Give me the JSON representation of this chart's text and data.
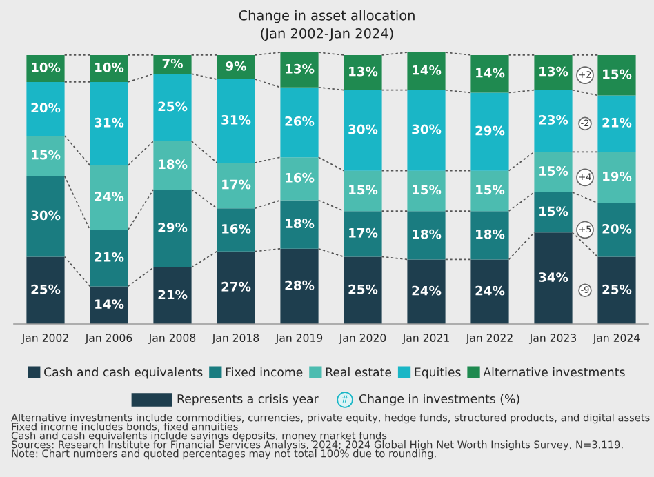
{
  "chart_data": {
    "type": "bar",
    "stacked": true,
    "title": "Change in asset allocation",
    "subtitle": "(Jan 2002-Jan 2024)",
    "categories": [
      "Jan 2002",
      "Jan 2006",
      "Jan 2008",
      "Jan 2018",
      "Jan 2019",
      "Jan 2020",
      "Jan 2021",
      "Jan 2022",
      "Jan 2023",
      "Jan 2024"
    ],
    "series": [
      {
        "name": "Cash and cash equivalents",
        "color": "#1e3e4e",
        "values": [
          25,
          14,
          21,
          27,
          28,
          25,
          24,
          24,
          34,
          25
        ],
        "value_labels": [
          "25%",
          "14%",
          "21%",
          "27%",
          "28%",
          "25%",
          "24%",
          "24%",
          "34%",
          "25%"
        ]
      },
      {
        "name": "Fixed income",
        "color": "#1a7c80",
        "values": [
          30,
          21,
          29,
          16,
          18,
          17,
          18,
          18,
          15,
          20
        ],
        "value_labels": [
          "30%",
          "21%",
          "29%",
          "16%",
          "18%",
          "17%",
          "18%",
          "18%",
          "15%",
          "20%"
        ]
      },
      {
        "name": "Real estate",
        "color": "#4cbcb0",
        "values": [
          15,
          24,
          18,
          17,
          16,
          15,
          15,
          15,
          15,
          19
        ],
        "value_labels": [
          "15%",
          "24%",
          "18%",
          "17%",
          "16%",
          "15%",
          "15%",
          "15%",
          "15%",
          "19%"
        ]
      },
      {
        "name": "Equities",
        "color": "#1ab6c6",
        "values": [
          20,
          31,
          25,
          31,
          26,
          30,
          30,
          29,
          23,
          21
        ],
        "value_labels": [
          "20%",
          "31%",
          "25%",
          "31%",
          "26%",
          "30%",
          "30%",
          "29%",
          "23%",
          "21%"
        ]
      },
      {
        "name": "Alternative investments",
        "color": "#1f8a50",
        "values": [
          10,
          10,
          7,
          9,
          13,
          13,
          14,
          14,
          13,
          15
        ],
        "value_labels": [
          "10%",
          "10%",
          "7%",
          "9%",
          "13%",
          "13%",
          "14%",
          "14%",
          "13%",
          "15%"
        ]
      }
    ],
    "tick_labels": "x",
    "grid": false,
    "legend": "bottom",
    "annotations": [
      "+2",
      "-2",
      "+4",
      "+5",
      "-9",
      "Represents a crisis year",
      "#",
      "Change in investments (%)",
      "Alternative investments include commodities, currencies, private equity, hedge funds, structured products, and digital assets",
      "Fixed income includes bonds, fixed annuities",
      "Cash and cash equivalents include savings deposits, money market funds",
      "Sources: Research Institute for Financial Services Analysis, 2024; 2024 Global High Net Worth Insights Survey, N=3,119.",
      "Note: Chart numbers and quoted percentages may not total 100% due to rounding."
    ]
  }
}
